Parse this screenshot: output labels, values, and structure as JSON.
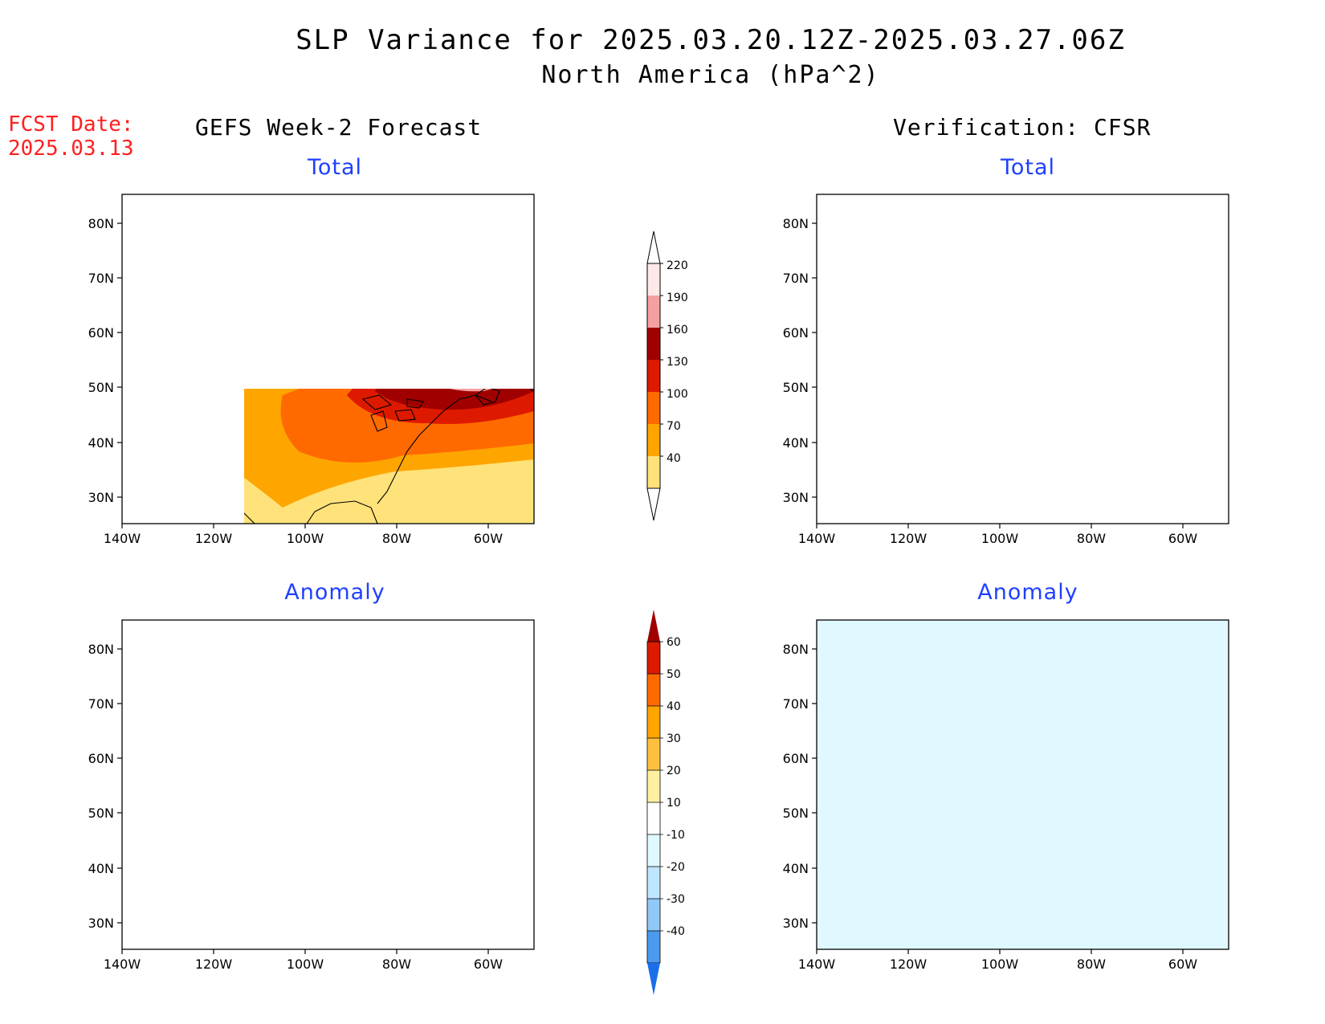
{
  "header": {
    "title": "SLP Variance for 2025.03.20.12Z-2025.03.27.06Z",
    "subtitle": "North America (hPa^2)",
    "fcst_label": "FCST Date:",
    "fcst_date": "2025.03.13"
  },
  "columns": {
    "left": "GEFS Week-2 Forecast",
    "right": "Verification: CFSR"
  },
  "panels": {
    "total": "Total",
    "anomaly": "Anomaly"
  },
  "axes": {
    "lat_ticks": [
      "80N",
      "70N",
      "60N",
      "50N",
      "40N",
      "30N"
    ],
    "lon_ticks": [
      "140W",
      "120W",
      "100W",
      "80W",
      "60W"
    ]
  },
  "colorbar_total": {
    "labels": [
      "220",
      "190",
      "160",
      "130",
      "100",
      "70",
      "40"
    ],
    "colors": [
      "#ffe8e8",
      "#f5a0a0",
      "#a00000",
      "#dd1a00",
      "#ff6a00",
      "#ffa500",
      "#ffe27a"
    ]
  },
  "colorbar_anomaly": {
    "labels": [
      "60",
      "50",
      "40",
      "30",
      "20",
      "10",
      "-10",
      "-20",
      "-30",
      "-40"
    ],
    "colors": [
      "#a00000",
      "#dd1a00",
      "#ff6a00",
      "#ffa500",
      "#ffc040",
      "#fff0a0",
      "#ffffff",
      "#e0f8ff",
      "#bfe6ff",
      "#90c8f8",
      "#4c9af0",
      "#1a6ee8"
    ]
  }
}
